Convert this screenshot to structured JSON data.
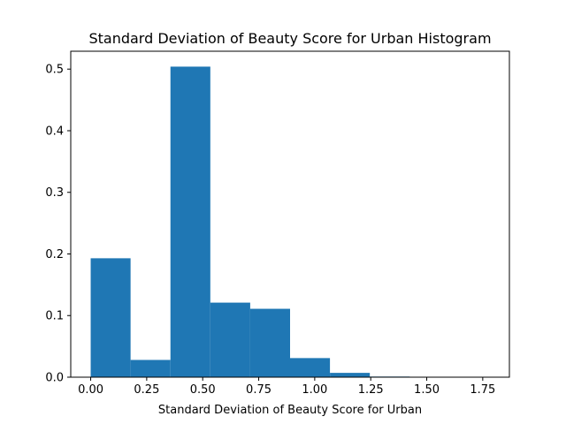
{
  "chart_data": {
    "type": "bar",
    "title": "Standard Deviation of Beauty Score for Urban Histogram",
    "xlabel": "Standard Deviation of Beauty Score for Urban",
    "ylabel": "",
    "xlim": [
      -0.089,
      1.869
    ],
    "ylim": [
      0,
      0.529
    ],
    "grid": false,
    "bar_color": "#1f77b4",
    "bins": [
      {
        "x0": 0.0,
        "x1": 0.178,
        "value": 0.193
      },
      {
        "x0": 0.178,
        "x1": 0.356,
        "value": 0.028
      },
      {
        "x0": 0.356,
        "x1": 0.534,
        "value": 0.504
      },
      {
        "x0": 0.534,
        "x1": 0.712,
        "value": 0.121
      },
      {
        "x0": 0.712,
        "x1": 0.89,
        "value": 0.111
      },
      {
        "x0": 0.89,
        "x1": 1.068,
        "value": 0.031
      },
      {
        "x0": 1.068,
        "x1": 1.246,
        "value": 0.007
      },
      {
        "x0": 1.246,
        "x1": 1.424,
        "value": 0.001
      },
      {
        "x0": 1.424,
        "x1": 1.602,
        "value": 0.0
      },
      {
        "x0": 1.602,
        "x1": 1.78,
        "value": 0.0
      }
    ],
    "x_ticks": [
      {
        "value": 0.0,
        "label": "0.00"
      },
      {
        "value": 0.25,
        "label": "0.25"
      },
      {
        "value": 0.5,
        "label": "0.50"
      },
      {
        "value": 0.75,
        "label": "0.75"
      },
      {
        "value": 1.0,
        "label": "1.00"
      },
      {
        "value": 1.25,
        "label": "1.25"
      },
      {
        "value": 1.5,
        "label": "1.50"
      },
      {
        "value": 1.75,
        "label": "1.75"
      }
    ],
    "y_ticks": [
      {
        "value": 0.0,
        "label": "0.0"
      },
      {
        "value": 0.1,
        "label": "0.1"
      },
      {
        "value": 0.2,
        "label": "0.2"
      },
      {
        "value": 0.3,
        "label": "0.3"
      },
      {
        "value": 0.4,
        "label": "0.4"
      },
      {
        "value": 0.5,
        "label": "0.5"
      }
    ]
  }
}
